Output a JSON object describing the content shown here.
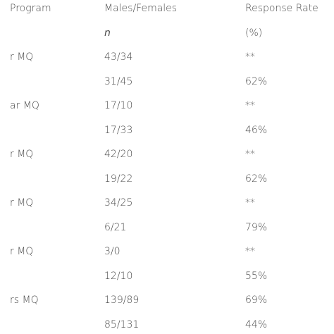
{
  "table": {
    "header": [
      "Program",
      "Males/Females",
      "Response Rate"
    ],
    "subheader": [
      null,
      "n",
      "(%)"
    ],
    "rows": [
      [
        "r MQ",
        "43/34",
        "**"
      ],
      [
        null,
        "31/45",
        "62%"
      ],
      [
        "ar MQ",
        "17/10",
        "**"
      ],
      [
        null,
        "17/33",
        "46%"
      ],
      [
        "r MQ",
        "42/20",
        "**"
      ],
      [
        null,
        "19/22",
        "62%"
      ],
      [
        "r MQ",
        "34/25",
        "**"
      ],
      [
        null,
        "6/21",
        "79%"
      ],
      [
        "r MQ",
        "3/0",
        "**"
      ],
      [
        null,
        "12/10",
        "55%"
      ],
      [
        "rs MQ",
        "139/89",
        "69%"
      ],
      [
        null,
        "85/131",
        "44%"
      ]
    ]
  }
}
